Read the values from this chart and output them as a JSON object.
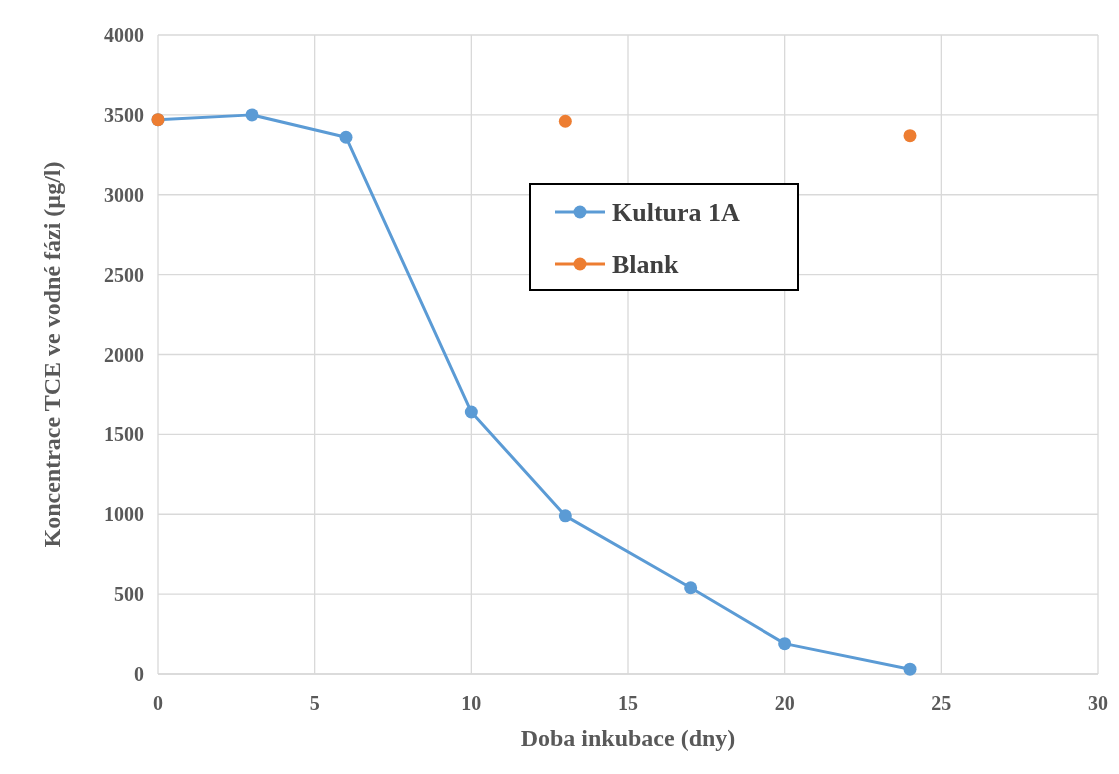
{
  "chart_data": {
    "type": "line",
    "xlabel": "Doba inkubace (dny)",
    "ylabel": "Koncentrace TCE ve vodné fázi (µg/l)",
    "xlim": [
      0,
      30
    ],
    "xticks": [
      0,
      5,
      10,
      15,
      20,
      25,
      30
    ],
    "ylim": [
      0,
      4000
    ],
    "yticks": [
      0,
      500,
      1000,
      1500,
      2000,
      2500,
      3000,
      3500,
      4000
    ],
    "grid": true,
    "legend": "top",
    "marker": "circle",
    "series": [
      {
        "name": "Kultura 1A",
        "color": "#5b9bd5",
        "x": [
          0,
          3,
          6,
          10,
          13,
          17,
          20,
          24
        ],
        "values": [
          3470,
          3500,
          3360,
          1640,
          990,
          540,
          190,
          30
        ]
      },
      {
        "name": "Blank",
        "type": "scatter",
        "color": "#ed7d31",
        "x": [
          0,
          13,
          24
        ],
        "values": [
          3470,
          3460,
          3370
        ]
      }
    ]
  }
}
